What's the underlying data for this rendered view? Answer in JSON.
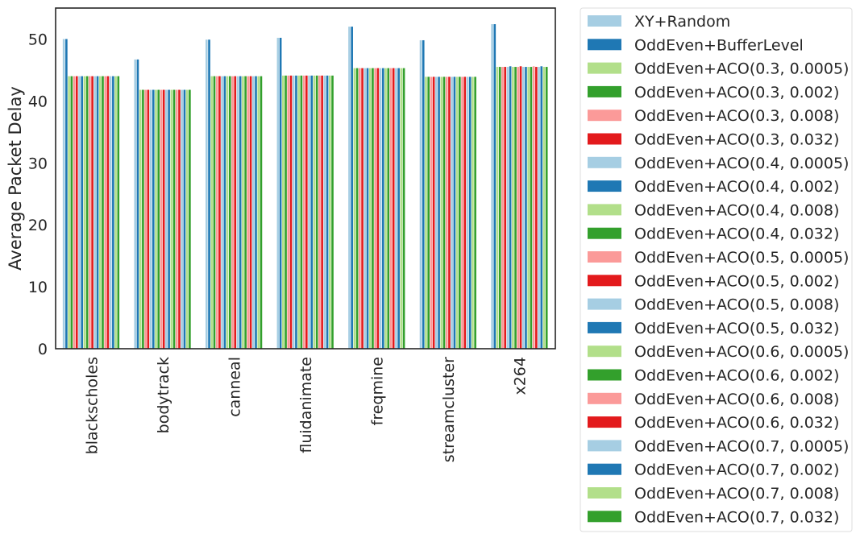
{
  "chart_data": {
    "type": "bar",
    "title": "",
    "xlabel": "",
    "ylabel": "Average Packet Delay",
    "ylim": [
      0,
      55
    ],
    "yticks": [
      0,
      10,
      20,
      30,
      40,
      50
    ],
    "grid": false,
    "legend_position": "outside-right",
    "categories": [
      "blackscholes",
      "bodytrack",
      "canneal",
      "fluidanimate",
      "freqmine",
      "streamcluster",
      "x264"
    ],
    "series": [
      {
        "name": "XY+Random",
        "color": "#a6cee3",
        "values": [
          50.0,
          46.7,
          49.9,
          50.2,
          52.0,
          49.8,
          52.4
        ]
      },
      {
        "name": "OddEven+BufferLevel",
        "color": "#1f78b4",
        "values": [
          50.0,
          46.7,
          49.9,
          50.2,
          52.0,
          49.8,
          52.4
        ]
      },
      {
        "name": "OddEven+ACO(0.3, 0.0005)",
        "color": "#b2df8a",
        "values": [
          44.0,
          41.8,
          44.0,
          44.1,
          45.3,
          43.9,
          45.5
        ]
      },
      {
        "name": "OddEven+ACO(0.3, 0.002)",
        "color": "#33a02c",
        "values": [
          44.0,
          41.8,
          44.0,
          44.1,
          45.3,
          43.9,
          45.5
        ]
      },
      {
        "name": "OddEven+ACO(0.3, 0.008)",
        "color": "#fb9a99",
        "values": [
          44.0,
          41.8,
          44.0,
          44.1,
          45.3,
          43.9,
          45.5
        ]
      },
      {
        "name": "OddEven+ACO(0.3, 0.032)",
        "color": "#e31a1c",
        "values": [
          44.0,
          41.8,
          44.0,
          44.1,
          45.3,
          43.9,
          45.5
        ]
      },
      {
        "name": "OddEven+ACO(0.4, 0.0005)",
        "color": "#a6cee3",
        "values": [
          44.0,
          41.8,
          44.0,
          44.1,
          45.3,
          43.9,
          45.5
        ]
      },
      {
        "name": "OddEven+ACO(0.4, 0.002)",
        "color": "#1f78b4",
        "values": [
          44.0,
          41.8,
          44.0,
          44.1,
          45.3,
          43.9,
          45.6
        ]
      },
      {
        "name": "OddEven+ACO(0.4, 0.008)",
        "color": "#b2df8a",
        "values": [
          44.0,
          41.8,
          44.0,
          44.1,
          45.3,
          43.9,
          45.5
        ]
      },
      {
        "name": "OddEven+ACO(0.4, 0.032)",
        "color": "#33a02c",
        "values": [
          44.0,
          41.8,
          44.0,
          44.1,
          45.3,
          43.9,
          45.5
        ]
      },
      {
        "name": "OddEven+ACO(0.5, 0.0005)",
        "color": "#fb9a99",
        "values": [
          44.0,
          41.8,
          44.0,
          44.1,
          45.3,
          43.9,
          45.5
        ]
      },
      {
        "name": "OddEven+ACO(0.5, 0.002)",
        "color": "#e31a1c",
        "values": [
          44.0,
          41.8,
          44.0,
          44.1,
          45.3,
          43.9,
          45.6
        ]
      },
      {
        "name": "OddEven+ACO(0.5, 0.008)",
        "color": "#a6cee3",
        "values": [
          44.0,
          41.8,
          44.0,
          44.1,
          45.3,
          43.9,
          45.5
        ]
      },
      {
        "name": "OddEven+ACO(0.5, 0.032)",
        "color": "#1f78b4",
        "values": [
          44.0,
          41.8,
          44.0,
          44.1,
          45.3,
          43.9,
          45.5
        ]
      },
      {
        "name": "OddEven+ACO(0.6, 0.0005)",
        "color": "#b2df8a",
        "values": [
          44.0,
          41.8,
          44.0,
          44.1,
          45.3,
          43.9,
          45.5
        ]
      },
      {
        "name": "OddEven+ACO(0.6, 0.002)",
        "color": "#33a02c",
        "values": [
          44.0,
          41.8,
          44.0,
          44.1,
          45.3,
          43.9,
          45.5
        ]
      },
      {
        "name": "OddEven+ACO(0.6, 0.008)",
        "color": "#fb9a99",
        "values": [
          44.0,
          41.8,
          44.0,
          44.1,
          45.3,
          43.9,
          45.6
        ]
      },
      {
        "name": "OddEven+ACO(0.6, 0.032)",
        "color": "#e31a1c",
        "values": [
          44.0,
          41.8,
          44.0,
          44.1,
          45.3,
          43.9,
          45.5
        ]
      },
      {
        "name": "OddEven+ACO(0.7, 0.0005)",
        "color": "#a6cee3",
        "values": [
          44.0,
          41.8,
          44.0,
          44.1,
          45.3,
          43.9,
          45.5
        ]
      },
      {
        "name": "OddEven+ACO(0.7, 0.002)",
        "color": "#1f78b4",
        "values": [
          44.0,
          41.8,
          44.0,
          44.1,
          45.3,
          43.9,
          45.6
        ]
      },
      {
        "name": "OddEven+ACO(0.7, 0.008)",
        "color": "#b2df8a",
        "values": [
          44.0,
          41.8,
          44.0,
          44.1,
          45.3,
          43.9,
          45.5
        ]
      },
      {
        "name": "OddEven+ACO(0.7, 0.032)",
        "color": "#33a02c",
        "values": [
          44.0,
          41.8,
          44.0,
          44.1,
          45.3,
          43.9,
          45.5
        ]
      }
    ]
  }
}
